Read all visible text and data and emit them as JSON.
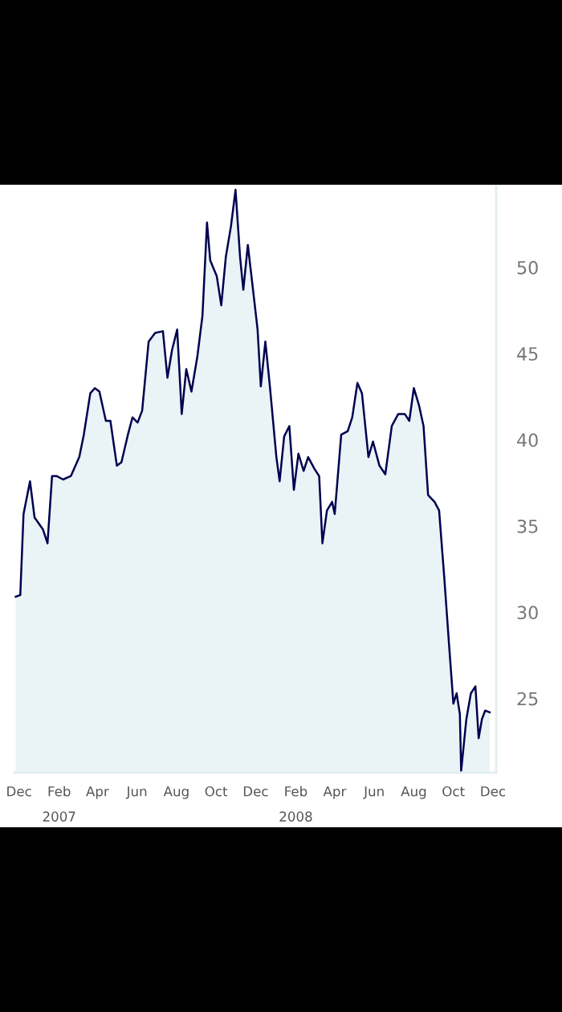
{
  "chart_data": {
    "type": "area",
    "x": [
      "2006-11-26",
      "2006-12-03",
      "2006-12-08",
      "2006-12-18",
      "2006-12-25",
      "2007-01-07",
      "2007-01-14",
      "2007-01-21",
      "2007-01-28",
      "2007-02-07",
      "2007-02-19",
      "2007-03-04",
      "2007-03-11",
      "2007-03-21",
      "2007-03-28",
      "2007-04-04",
      "2007-04-14",
      "2007-04-21",
      "2007-05-01",
      "2007-05-08",
      "2007-05-18",
      "2007-05-25",
      "2007-06-02",
      "2007-06-09",
      "2007-06-19",
      "2007-06-29",
      "2007-07-11",
      "2007-07-18",
      "2007-07-25",
      "2007-08-02",
      "2007-08-09",
      "2007-08-16",
      "2007-08-24",
      "2007-09-02",
      "2007-09-10",
      "2007-09-17",
      "2007-09-22",
      "2007-10-02",
      "2007-10-09",
      "2007-10-16",
      "2007-10-24",
      "2007-10-31",
      "2007-11-07",
      "2007-11-12",
      "2007-11-19",
      "2007-11-27",
      "2007-12-04",
      "2007-12-09",
      "2007-12-16",
      "2007-12-23",
      "2008-01-02",
      "2008-01-07",
      "2008-01-14",
      "2008-01-22",
      "2008-01-29",
      "2008-02-05",
      "2008-02-13",
      "2008-02-20",
      "2008-03-01",
      "2008-03-08",
      "2008-03-13",
      "2008-03-20",
      "2008-03-28",
      "2008-04-01",
      "2008-04-11",
      "2008-04-21",
      "2008-04-28",
      "2008-05-06",
      "2008-05-13",
      "2008-05-23",
      "2008-05-30",
      "2008-06-09",
      "2008-06-18",
      "2008-06-28",
      "2008-07-08",
      "2008-07-18",
      "2008-07-25",
      "2008-08-01",
      "2008-08-09",
      "2008-08-16",
      "2008-08-23",
      "2008-09-02",
      "2008-09-09",
      "2008-09-17",
      "2008-09-24",
      "2008-10-01",
      "2008-10-06",
      "2008-10-11",
      "2008-10-13",
      "2008-10-21",
      "2008-10-28",
      "2008-11-04",
      "2008-11-09",
      "2008-11-14",
      "2008-11-19",
      "2008-11-26"
    ],
    "series": [
      {
        "color": "#000050",
        "values": [
          30.9,
          31.0,
          35.7,
          37.6,
          35.5,
          34.8,
          34.0,
          37.9,
          37.9,
          37.7,
          37.9,
          39.0,
          40.3,
          42.7,
          43.0,
          42.8,
          41.1,
          41.1,
          38.5,
          38.7,
          40.3,
          41.3,
          41.0,
          41.7,
          45.7,
          46.2,
          46.3,
          43.6,
          45.2,
          46.4,
          41.5,
          44.1,
          42.8,
          44.8,
          47.2,
          52.6,
          50.4,
          49.5,
          47.8,
          50.6,
          52.4,
          54.5,
          50.6,
          48.7,
          51.3,
          48.7,
          46.4,
          43.1,
          45.7,
          43.1,
          39.0,
          37.6,
          40.2,
          40.8,
          37.1,
          39.2,
          38.2,
          39.0,
          38.3,
          37.9,
          34.0,
          35.9,
          36.4,
          35.7,
          40.3,
          40.5,
          41.3,
          43.3,
          42.7,
          39.0,
          39.9,
          38.5,
          38.0,
          40.8,
          41.5,
          41.5,
          41.1,
          43.0,
          42.0,
          40.8,
          36.8,
          36.4,
          35.9,
          32.0,
          28.3,
          24.7,
          25.3,
          24.1,
          20.8,
          23.8,
          25.3,
          25.7,
          22.7,
          23.8,
          24.3,
          24.2
        ]
      }
    ],
    "xlim": [
      "2006-11-24",
      "2008-12-06"
    ],
    "xticks": [
      {
        "value": "2006-12-01",
        "label": "Dec"
      },
      {
        "value": "2007-02-01",
        "label": "Feb\n2007"
      },
      {
        "value": "2007-04-01",
        "label": "Apr"
      },
      {
        "value": "2007-06-01",
        "label": "Jun"
      },
      {
        "value": "2007-08-01",
        "label": "Aug"
      },
      {
        "value": "2007-10-01",
        "label": "Oct"
      },
      {
        "value": "2007-12-01",
        "label": "Dec"
      },
      {
        "value": "2008-02-01",
        "label": "Feb\n2008"
      },
      {
        "value": "2008-04-01",
        "label": "Apr"
      },
      {
        "value": "2008-06-01",
        "label": "Jun"
      },
      {
        "value": "2008-08-01",
        "label": "Aug"
      },
      {
        "value": "2008-10-01",
        "label": "Oct"
      },
      {
        "value": "2008-12-01",
        "label": "Dec"
      }
    ],
    "ylim": [
      20.7,
      54.7
    ],
    "yticks": [
      25,
      30,
      35,
      40,
      45,
      50
    ],
    "grid": false,
    "legend": false
  }
}
